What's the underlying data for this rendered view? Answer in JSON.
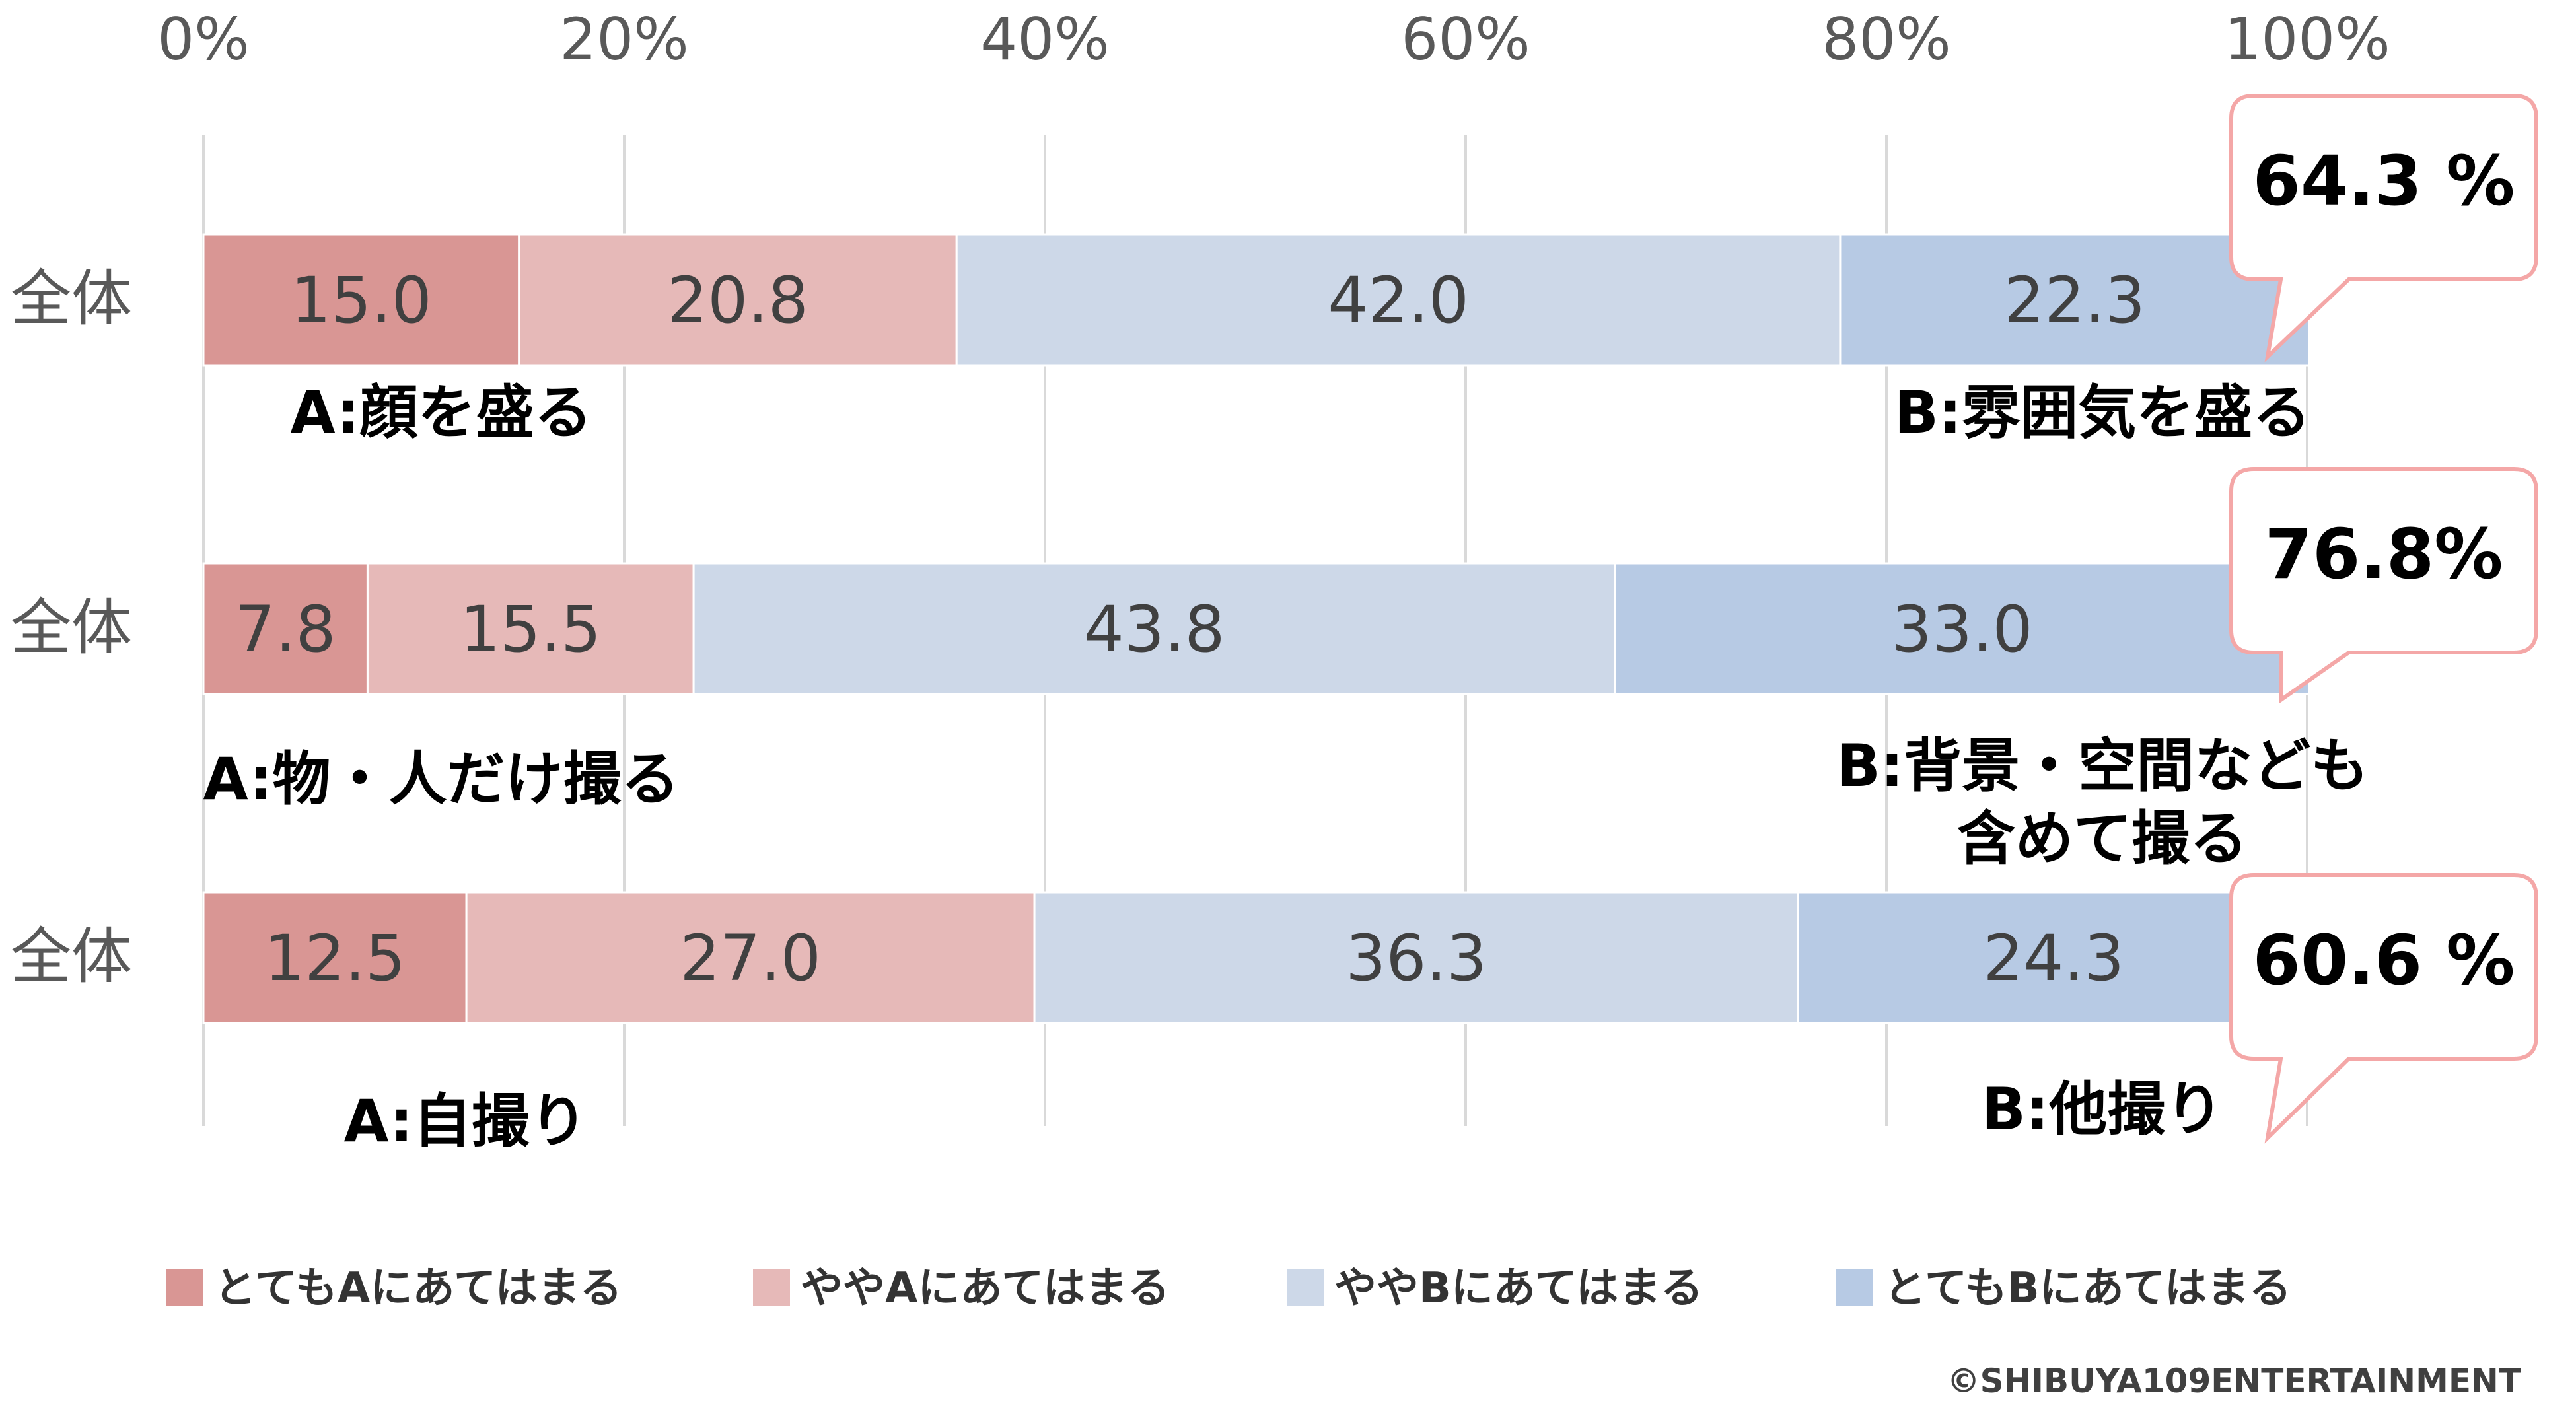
{
  "chart_data": {
    "type": "bar",
    "orientation": "horizontal",
    "stacked": true,
    "xlim": [
      0,
      100
    ],
    "x_ticks": [
      "0%",
      "20%",
      "40%",
      "60%",
      "80%",
      "100%"
    ],
    "grid": true,
    "legend_position": "bottom",
    "series": [
      {
        "name": "とてもAにあてはまる",
        "color": "#d99694"
      },
      {
        "name": "ややAにあてはまる",
        "color": "#e6b9b8"
      },
      {
        "name": "ややBにあてはまる",
        "color": "#cdd8e8"
      },
      {
        "name": "とてもBにあてはまる",
        "color": "#b7cae4"
      }
    ],
    "rows": [
      {
        "category": "全体",
        "values": [
          15.0,
          20.8,
          42.0,
          22.3
        ],
        "labels": [
          "15.0",
          "20.8",
          "42.0",
          "22.3"
        ],
        "label_a": [
          "A:顔を盛る"
        ],
        "label_b": [
          "B:雰囲気を盛る"
        ],
        "callout": "64.3 %"
      },
      {
        "category": "全体",
        "values": [
          7.8,
          15.5,
          43.8,
          33.0
        ],
        "labels": [
          "7.8",
          "15.5",
          "43.8",
          "33.0"
        ],
        "label_a": [
          "A:物・人だけ撮る"
        ],
        "label_b": [
          "B:背景・空間なども",
          "含めて撮る"
        ],
        "callout": "76.8%"
      },
      {
        "category": "全体",
        "values": [
          12.5,
          27.0,
          36.3,
          24.3
        ],
        "labels": [
          "12.5",
          "27.0",
          "36.3",
          "24.3"
        ],
        "label_a": [
          "A:自撮り"
        ],
        "label_b": [
          "B:他撮り"
        ],
        "callout": "60.6 %"
      }
    ],
    "callout_border_color": "#f4a7a7"
  },
  "copyright": "©SHIBUYA109ENTERTAINMENT"
}
